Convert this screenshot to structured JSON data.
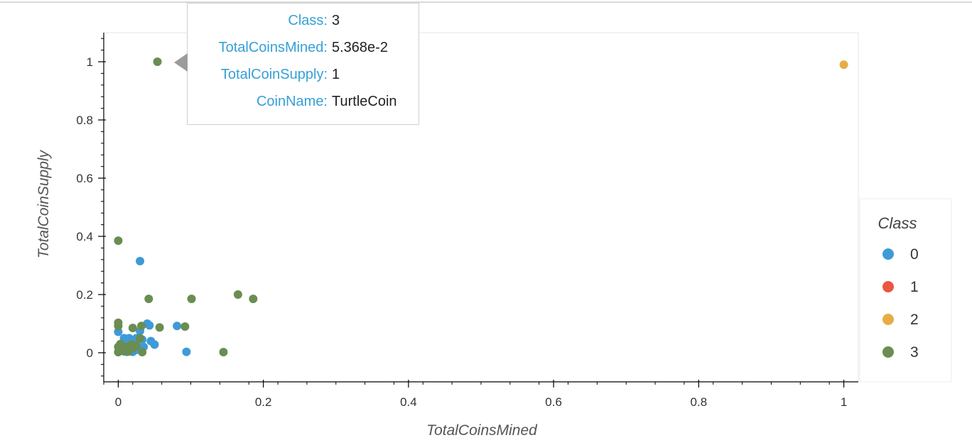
{
  "chart_data": {
    "type": "scatter",
    "xlabel": "TotalCoinsMined",
    "ylabel": "TotalCoinSupply",
    "xlim": [
      -0.02,
      1.02
    ],
    "ylim": [
      -0.1,
      1.1
    ],
    "x_ticks": [
      {
        "value": 0,
        "label": "0"
      },
      {
        "value": 0.2,
        "label": "0.2"
      },
      {
        "value": 0.4,
        "label": "0.4"
      },
      {
        "value": 0.6,
        "label": "0.6"
      },
      {
        "value": 0.8,
        "label": "0.8"
      },
      {
        "value": 1,
        "label": "1"
      }
    ],
    "y_ticks": [
      {
        "value": 0,
        "label": "0"
      },
      {
        "value": 0.2,
        "label": "0.2"
      },
      {
        "value": 0.4,
        "label": "0.4"
      },
      {
        "value": 0.6,
        "label": "0.6"
      },
      {
        "value": 0.8,
        "label": "0.8"
      },
      {
        "value": 1,
        "label": "1"
      }
    ],
    "grid": false,
    "legend": {
      "title": "Class",
      "placement": "right"
    },
    "series": [
      {
        "name": "0",
        "color": "#3f9ad8",
        "points": [
          [
            0.03,
            0.315
          ],
          [
            0.04,
            0.1
          ],
          [
            0.043,
            0.094
          ],
          [
            0.03,
            0.075
          ],
          [
            0.081,
            0.092
          ],
          [
            0.033,
            0.045
          ],
          [
            0.045,
            0.04
          ],
          [
            0.05,
            0.028
          ],
          [
            0.025,
            0.05
          ],
          [
            0.015,
            0.05
          ],
          [
            0.008,
            0.05
          ],
          [
            0.0,
            0.072
          ],
          [
            0.094,
            0.003
          ],
          [
            0.02,
            0.003
          ],
          [
            0.012,
            0.003
          ],
          [
            0.005,
            0.012
          ],
          [
            0.035,
            0.02
          ],
          [
            0.025,
            0.01
          ],
          [
            0.018,
            0.02
          ],
          [
            0.01,
            0.03
          ]
        ]
      },
      {
        "name": "1",
        "color": "#e9573f",
        "points": []
      },
      {
        "name": "2",
        "color": "#e6ad45",
        "points": [
          [
            1.0,
            0.99
          ]
        ]
      },
      {
        "name": "3",
        "color": "#6a8d52",
        "points": [
          [
            0.054,
            1.0
          ],
          [
            0.0,
            0.385
          ],
          [
            0.042,
            0.185
          ],
          [
            0.101,
            0.185
          ],
          [
            0.165,
            0.2
          ],
          [
            0.186,
            0.185
          ],
          [
            0.0,
            0.103
          ],
          [
            0.0,
            0.092
          ],
          [
            0.032,
            0.092
          ],
          [
            0.057,
            0.087
          ],
          [
            0.092,
            0.09
          ],
          [
            0.02,
            0.085
          ],
          [
            0.03,
            0.05
          ],
          [
            0.145,
            0.002
          ],
          [
            0.033,
            0.002
          ],
          [
            0.0,
            0.002
          ],
          [
            0.005,
            0.01
          ],
          [
            0.01,
            0.02
          ],
          [
            0.015,
            0.005
          ],
          [
            0.02,
            0.015
          ],
          [
            0.025,
            0.025
          ],
          [
            0.0,
            0.02
          ],
          [
            0.003,
            0.03
          ],
          [
            0.008,
            0.005
          ],
          [
            0.012,
            0.012
          ],
          [
            0.018,
            0.028
          ]
        ]
      }
    ],
    "tooltip": {
      "rows": [
        {
          "key": "Class:",
          "value": "3"
        },
        {
          "key": "TotalCoinsMined:",
          "value": "5.368e-2"
        },
        {
          "key": "TotalCoinSupply:",
          "value": "1"
        },
        {
          "key": "CoinName:",
          "value": "TurtleCoin"
        }
      ]
    }
  }
}
